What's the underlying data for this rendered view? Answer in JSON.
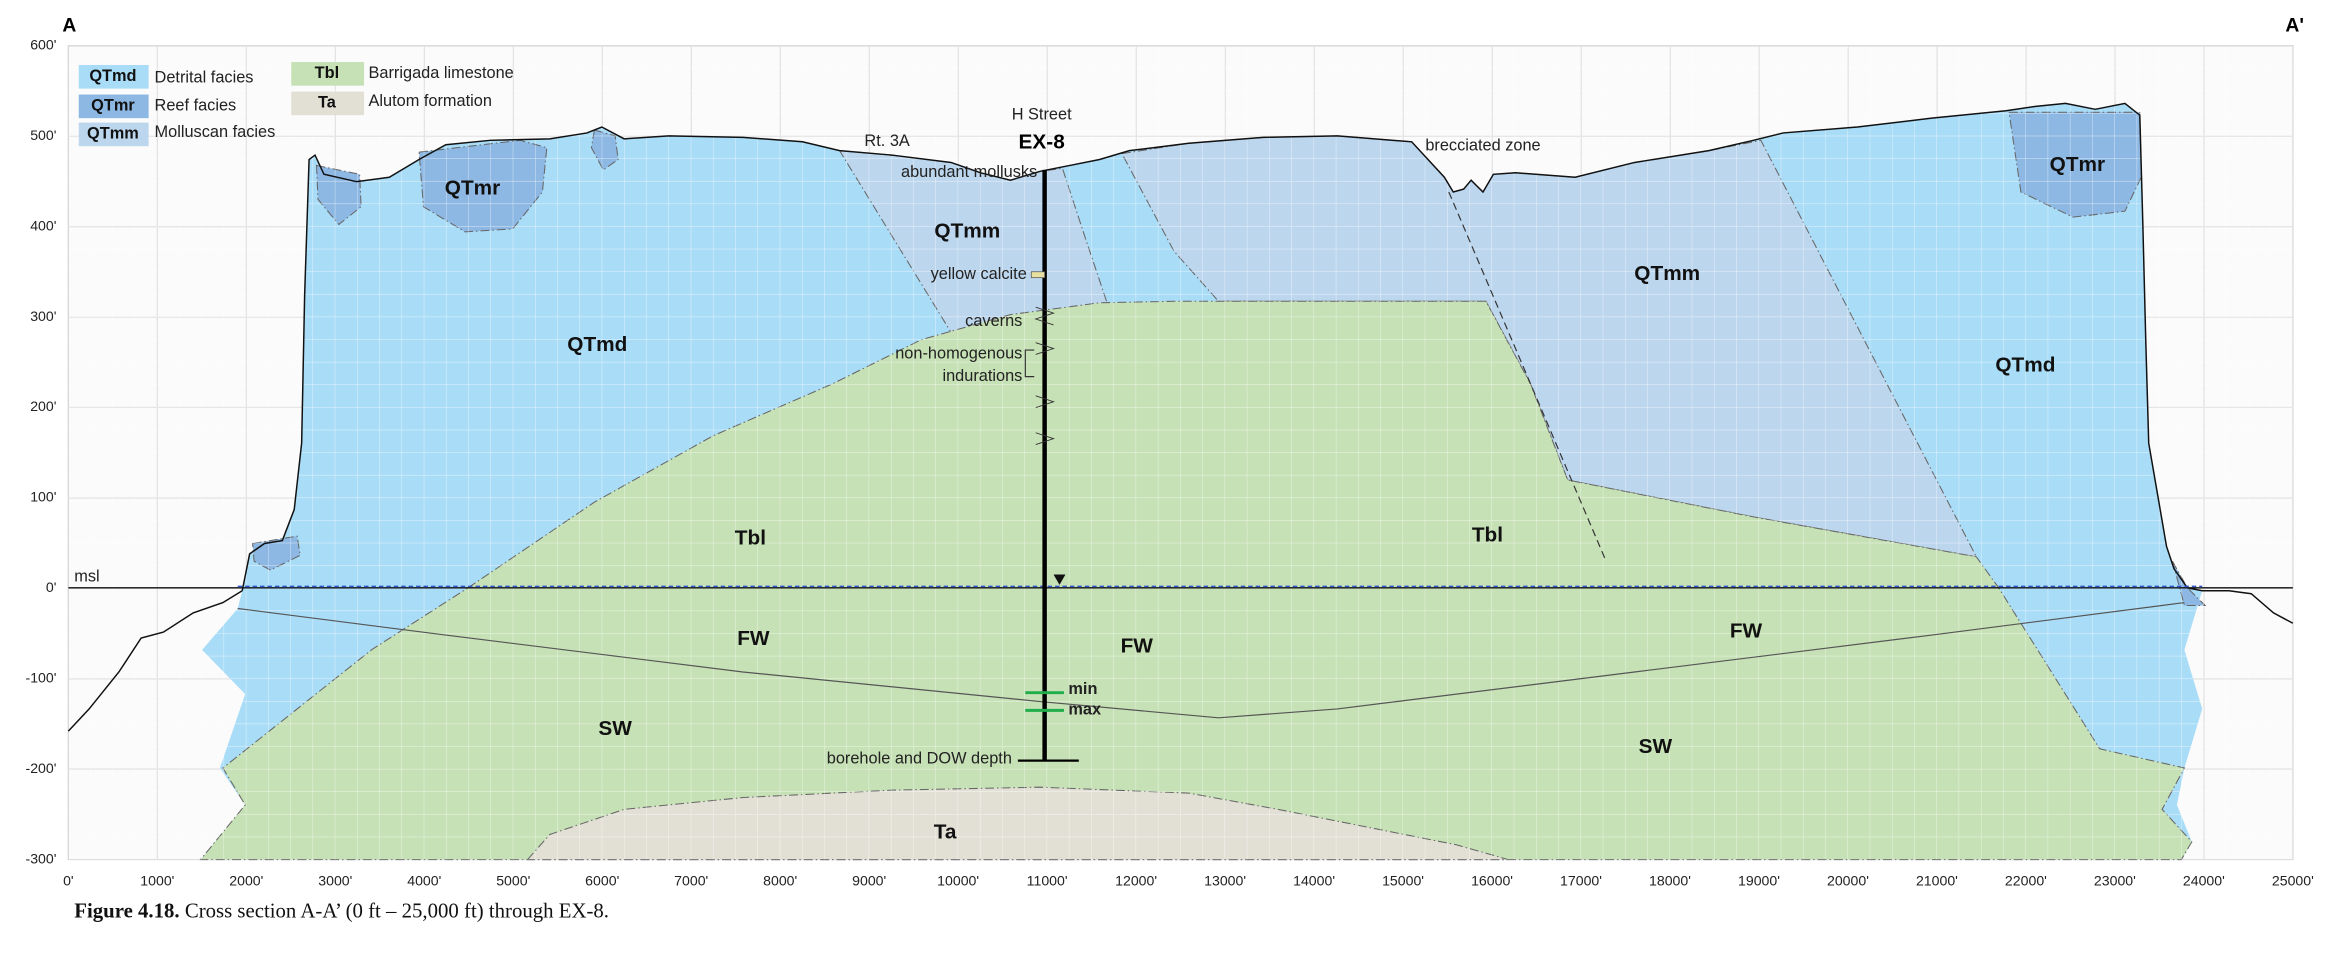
{
  "section_labels": {
    "left": "A",
    "right": "A'"
  },
  "legend": [
    {
      "code": "QTmd",
      "label": "Detrital facies"
    },
    {
      "code": "QTmr",
      "label": "Reef facies"
    },
    {
      "code": "QTmm",
      "label": "Molluscan facies"
    },
    {
      "code": "Tbl",
      "label": "Barrigada limestone"
    },
    {
      "code": "Ta",
      "label": "Alutom formation"
    }
  ],
  "axes": {
    "xlim": [
      0,
      25000
    ],
    "ylim": [
      -300,
      600
    ],
    "xticks": [
      {
        "value": 0,
        "label": "0'"
      },
      {
        "value": 1000,
        "label": "1000'"
      },
      {
        "value": 2000,
        "label": "2000'"
      },
      {
        "value": 3000,
        "label": "3000'"
      },
      {
        "value": 4000,
        "label": "4000'"
      },
      {
        "value": 5000,
        "label": "5000'"
      },
      {
        "value": 6000,
        "label": "6000'"
      },
      {
        "value": 7000,
        "label": "7000'"
      },
      {
        "value": 8000,
        "label": "8000'"
      },
      {
        "value": 9000,
        "label": "9000'"
      },
      {
        "value": 10000,
        "label": "10000'"
      },
      {
        "value": 11000,
        "label": "11000'"
      },
      {
        "value": 12000,
        "label": "12000'"
      },
      {
        "value": 13000,
        "label": "13000'"
      },
      {
        "value": 14000,
        "label": "14000'"
      },
      {
        "value": 15000,
        "label": "15000'"
      },
      {
        "value": 16000,
        "label": "16000'"
      },
      {
        "value": 17000,
        "label": "17000'"
      },
      {
        "value": 18000,
        "label": "18000'"
      },
      {
        "value": 19000,
        "label": "19000'"
      },
      {
        "value": 20000,
        "label": "20000'"
      },
      {
        "value": 21000,
        "label": "21000'"
      },
      {
        "value": 22000,
        "label": "22000'"
      },
      {
        "value": 23000,
        "label": "23000'"
      },
      {
        "value": 24000,
        "label": "24000'"
      },
      {
        "value": 25000,
        "label": "25000'"
      }
    ],
    "yticks": [
      {
        "value": 600,
        "label": "600'"
      },
      {
        "value": 500,
        "label": "500'"
      },
      {
        "value": 400,
        "label": "400'"
      },
      {
        "value": 300,
        "label": "300'"
      },
      {
        "value": 200,
        "label": "200'"
      },
      {
        "value": 100,
        "label": "100'"
      },
      {
        "value": 0,
        "label": "0'"
      },
      {
        "value": -100,
        "label": "-100'"
      },
      {
        "value": -200,
        "label": "-200'"
      },
      {
        "value": -300,
        "label": "-300'"
      }
    ]
  },
  "annotations": {
    "street": "H Street",
    "well": "EX-8",
    "route": "Rt. 3A",
    "mollusks": "abundant mollusks",
    "calcite": "yellow calcite",
    "caverns": "caverns",
    "indurations_1": "non-homogenous",
    "indurations_2": "indurations",
    "brecciated": "brecciated zone",
    "msl": "msl",
    "min": "min",
    "max": "max",
    "depth": "borehole and DOW depth"
  },
  "unit_labels": [
    "QTmr",
    "QTmm",
    "QTmd",
    "QTmm",
    "QTmr",
    "QTmd",
    "Tbl",
    "Tbl",
    "FW",
    "FW",
    "FW",
    "SW",
    "SW",
    "Ta"
  ],
  "caption": {
    "number": "Figure 4.18.",
    "text": " Cross section A-A’ (0 ft – 25,000 ft) through EX-8."
  }
}
